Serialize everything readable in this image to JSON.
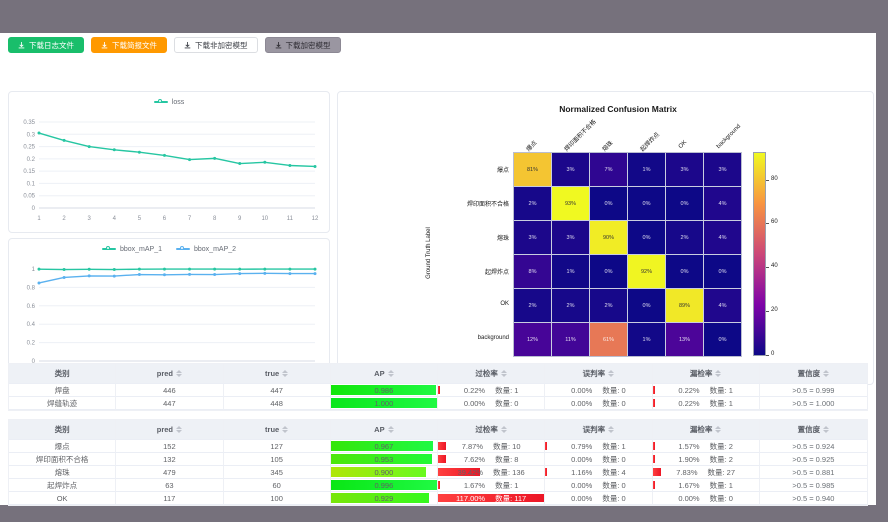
{
  "buttons": [
    {
      "label": "下载日志文件",
      "style": "green"
    },
    {
      "label": "下载简报文件",
      "style": "orange"
    },
    {
      "label": "下载非加密模型",
      "style": "plain"
    },
    {
      "label": "下载加密模型",
      "style": "gray"
    }
  ],
  "chart_data": [
    {
      "type": "line",
      "x": [
        1,
        2,
        3,
        4,
        5,
        6,
        7,
        8,
        9,
        10,
        11,
        12
      ],
      "series": [
        {
          "name": "loss",
          "color": "#26c6a2",
          "values": [
            0.305,
            0.275,
            0.25,
            0.237,
            0.227,
            0.214,
            0.197,
            0.202,
            0.181,
            0.186,
            0.173,
            0.169
          ]
        }
      ],
      "ylim": [
        0,
        0.35
      ],
      "yticks": [
        0,
        0.05,
        0.1,
        0.15,
        0.2,
        0.25,
        0.3,
        0.35
      ],
      "legend_position": "top"
    },
    {
      "type": "line",
      "x": [
        1,
        2,
        3,
        4,
        5,
        6,
        7,
        8,
        9,
        10,
        11,
        12
      ],
      "series": [
        {
          "name": "bbox_mAP_1",
          "color": "#26c6a2",
          "values": [
            0.998,
            0.994,
            0.997,
            0.994,
            0.998,
            0.999,
            0.999,
            0.999,
            0.998,
            0.999,
            0.999,
            0.999
          ]
        },
        {
          "name": "bbox_mAP_2",
          "color": "#5ab1ef",
          "values": [
            0.848,
            0.908,
            0.925,
            0.923,
            0.94,
            0.937,
            0.941,
            0.94,
            0.95,
            0.953,
            0.95,
            0.95
          ]
        }
      ],
      "ylim": [
        0,
        1
      ],
      "yticks": [
        0,
        0.2,
        0.4,
        0.6,
        0.8,
        1
      ],
      "legend_position": "top"
    }
  ],
  "confusion_matrix": {
    "title": "Normalized Confusion Matrix",
    "xlabel": "Prediction Label",
    "ylabel": "Ground Truth Label",
    "labels": [
      "爆点",
      "焊印面积不合格",
      "熔珠",
      "起焊炸点",
      "OK",
      "background"
    ],
    "values": [
      [
        81,
        3,
        7,
        1,
        3,
        3
      ],
      [
        2,
        93,
        0,
        0,
        0,
        4
      ],
      [
        3,
        3,
        90,
        0,
        2,
        4
      ],
      [
        8,
        1,
        0,
        92,
        0,
        0
      ],
      [
        2,
        2,
        2,
        0,
        89,
        4
      ],
      [
        12,
        11,
        61,
        1,
        13,
        0
      ]
    ],
    "vmax": 93,
    "colorbar_ticks": [
      80,
      60,
      40,
      20,
      0
    ]
  },
  "tables": {
    "qty_label": "数量:",
    "headers": [
      {
        "label": "类别",
        "sortable": false
      },
      {
        "label": "pred",
        "sortable": true
      },
      {
        "label": "true",
        "sortable": true
      },
      {
        "label": "AP",
        "sortable": true
      },
      {
        "label": "过检率",
        "sortable": true
      },
      {
        "label": "误判率",
        "sortable": true
      },
      {
        "label": "漏检率",
        "sortable": true
      },
      {
        "label": "置信度",
        "sortable": true
      }
    ],
    "table1": [
      {
        "name": "焊盘",
        "pred": "446",
        "true": "447",
        "ap": "0.986",
        "over_pct": "0.22%",
        "over_n": "1",
        "mis_pct": "0.00%",
        "mis_n": "0",
        "miss_pct": "0.22%",
        "miss_n": "1",
        "conf": ">0.5 = 0.999"
      },
      {
        "name": "焊缝轨迹",
        "pred": "447",
        "true": "448",
        "ap": "1.000",
        "over_pct": "0.00%",
        "over_n": "0",
        "mis_pct": "0.00%",
        "mis_n": "0",
        "miss_pct": "0.22%",
        "miss_n": "1",
        "conf": ">0.5 = 1.000"
      }
    ],
    "table2": [
      {
        "name": "爆点",
        "pred": "152",
        "true": "127",
        "ap": "0.967",
        "over_pct": "7.87%",
        "over_n": "10",
        "mis_pct": "0.79%",
        "mis_n": "1",
        "miss_pct": "1.57%",
        "miss_n": "2",
        "conf": ">0.5 = 0.924"
      },
      {
        "name": "焊印面积不合格",
        "pred": "132",
        "true": "105",
        "ap": "0.953",
        "over_pct": "7.62%",
        "over_n": "8",
        "mis_pct": "0.00%",
        "mis_n": "0",
        "miss_pct": "1.90%",
        "miss_n": "2",
        "conf": ">0.5 = 0.925"
      },
      {
        "name": "熔珠",
        "pred": "479",
        "true": "345",
        "ap": "0.900",
        "over_pct": "39.42%",
        "over_n": "136",
        "mis_pct": "1.16%",
        "mis_n": "4",
        "miss_pct": "7.83%",
        "miss_n": "27",
        "conf": ">0.5 = 0.881"
      },
      {
        "name": "起焊炸点",
        "pred": "63",
        "true": "60",
        "ap": "0.996",
        "over_pct": "1.67%",
        "over_n": "1",
        "mis_pct": "0.00%",
        "mis_n": "0",
        "miss_pct": "1.67%",
        "miss_n": "1",
        "conf": ">0.5 = 0.985"
      },
      {
        "name": "OK",
        "pred": "117",
        "true": "100",
        "ap": "0.929",
        "over_pct": "117.00%",
        "over_n": "117",
        "mis_pct": "0.00%",
        "mis_n": "0",
        "miss_pct": "0.00%",
        "miss_n": "0",
        "conf": ">0.5 = 0.940"
      }
    ]
  }
}
